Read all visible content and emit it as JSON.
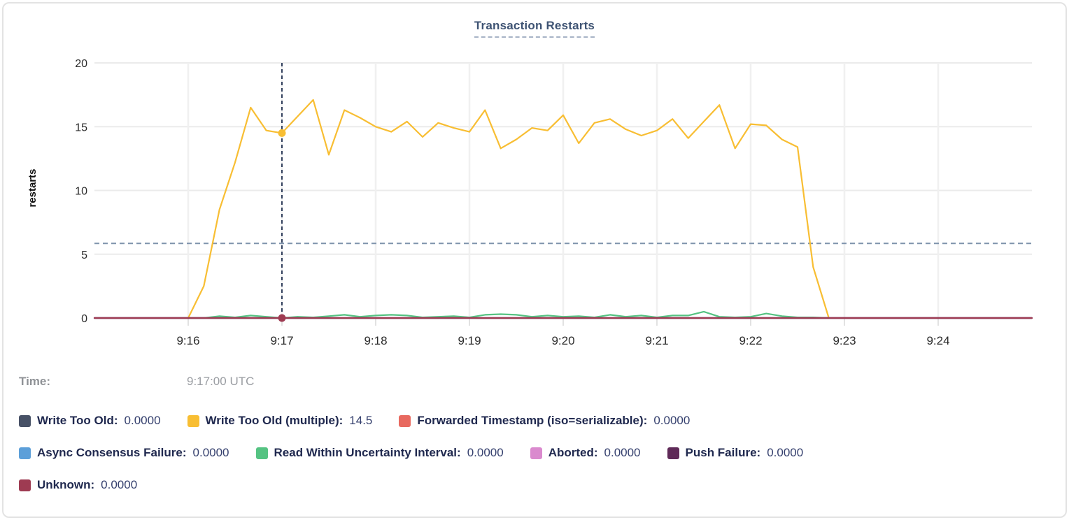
{
  "title": "Transaction Restarts",
  "tooltip": {
    "time_label": "Time:",
    "time_value": "9:17:00 UTC"
  },
  "legend": {
    "rows": [
      [
        "Write Too Old",
        "Write Too Old (multiple)",
        "Forwarded Timestamp (iso=serializable)"
      ],
      [
        "Async Consensus Failure",
        "Read Within Uncertainty Interval",
        "Aborted",
        "Push Failure"
      ],
      [
        "Unknown"
      ]
    ]
  },
  "chart_data": {
    "type": "line",
    "title": "Transaction Restarts",
    "xlabel": "",
    "ylabel": "restarts",
    "ylim": [
      0,
      20
    ],
    "y_ticks": [
      0,
      5,
      10,
      15,
      20
    ],
    "x_ticks": [
      "9:16",
      "9:17",
      "9:18",
      "9:19",
      "9:20",
      "9:21",
      "9:22",
      "9:23",
      "9:24"
    ],
    "x_domain": [
      "9:15:00",
      "9:25:00"
    ],
    "grid": true,
    "crosshair": {
      "x_time": "9:17:00",
      "h_line_value": 5.85,
      "dots": [
        {
          "series": "Write Too Old (multiple)",
          "value": 14.5
        },
        {
          "series": "Unknown",
          "value": 0
        }
      ]
    },
    "series": [
      {
        "name": "Write Too Old",
        "color": "#475166",
        "legend_value": "0.0000",
        "x_times": [
          "9:15:00",
          "9:25:00"
        ],
        "values": [
          0,
          0
        ]
      },
      {
        "name": "Write Too Old (multiple)",
        "color": "#F8BE33",
        "legend_value": "14.5",
        "x_start": "9:16:00",
        "x_step_seconds": 10,
        "values": [
          0,
          2.5,
          8.5,
          12.2,
          16.5,
          14.7,
          14.5,
          15.8,
          17.1,
          12.8,
          16.3,
          15.7,
          15.0,
          14.6,
          15.4,
          14.2,
          15.3,
          14.9,
          14.6,
          16.3,
          13.3,
          14.0,
          14.9,
          14.7,
          15.9,
          13.7,
          15.3,
          15.6,
          14.8,
          14.3,
          14.7,
          15.6,
          14.1,
          15.4,
          16.7,
          13.3,
          15.2,
          15.1,
          14.0,
          13.4,
          4.0,
          0
        ]
      },
      {
        "name": "Forwarded Timestamp (iso=serializable)",
        "color": "#E8695F",
        "legend_value": "0.0000",
        "x_times": [
          "9:15:00",
          "9:18:40",
          "9:18:50",
          "9:19:05",
          "9:25:00"
        ],
        "values": [
          0,
          0,
          0.12,
          0,
          0
        ]
      },
      {
        "name": "Async Consensus Failure",
        "color": "#5C9FD9",
        "legend_value": "0.0000",
        "x_times": [
          "9:15:00",
          "9:25:00"
        ],
        "values": [
          0,
          0
        ]
      },
      {
        "name": "Read Within Uncertainty Interval",
        "color": "#55C382",
        "legend_value": "0.0000",
        "x_start": "9:16:00",
        "x_step_seconds": 10,
        "values": [
          0,
          0,
          0.15,
          0.05,
          0.2,
          0.1,
          0,
          0.1,
          0.05,
          0.15,
          0.25,
          0.1,
          0.2,
          0.25,
          0.2,
          0.05,
          0.1,
          0.15,
          0.05,
          0.25,
          0.3,
          0.25,
          0.1,
          0.2,
          0.1,
          0.15,
          0.05,
          0.25,
          0.1,
          0.2,
          0.05,
          0.2,
          0.2,
          0.5,
          0.1,
          0.05,
          0.1,
          0.35,
          0.15,
          0.05,
          0.05,
          0
        ]
      },
      {
        "name": "Aborted",
        "color": "#DA8ACE",
        "legend_value": "0.0000",
        "x_times": [
          "9:15:00",
          "9:25:00"
        ],
        "values": [
          0,
          0
        ]
      },
      {
        "name": "Push Failure",
        "color": "#5F2A58",
        "legend_value": "0.0000",
        "x_times": [
          "9:15:00",
          "9:25:00"
        ],
        "values": [
          0,
          0
        ]
      },
      {
        "name": "Unknown",
        "color": "#9E3B52",
        "legend_value": "0.0000",
        "x_times": [
          "9:15:00",
          "9:25:00"
        ],
        "values": [
          0,
          0
        ]
      }
    ]
  }
}
